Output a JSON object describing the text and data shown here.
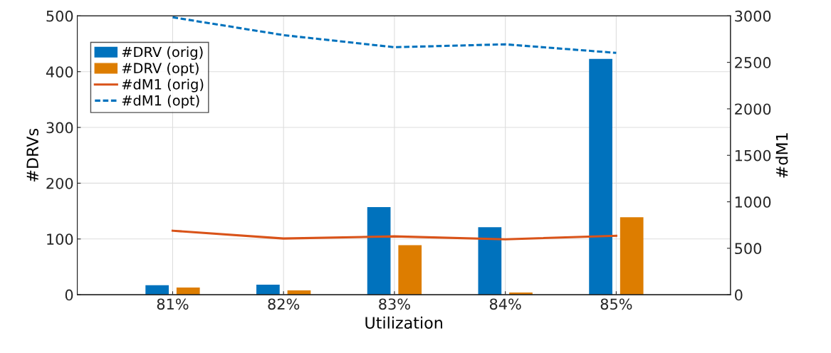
{
  "chart_data": {
    "type": "bar",
    "xlabel": "Utilization",
    "ylabel": "#DRVs",
    "y2label": "#dM1",
    "categories": [
      "81%",
      "82%",
      "83%",
      "84%",
      "85%"
    ],
    "series": [
      {
        "name": "#DRV (orig)",
        "color": "#0072bd",
        "values": [
          17,
          18,
          157,
          121,
          423
        ]
      },
      {
        "name": "#DRV (opt)",
        "color": "#dd7d00",
        "values": [
          13,
          8,
          89,
          4,
          139
        ]
      },
      {
        "name": "#dM1 (orig)",
        "type": "line",
        "axis": "y2",
        "color": "#d95319",
        "line_style": "solid",
        "values": [
          689,
          605,
          628,
          597,
          635
        ]
      },
      {
        "name": "#dM1 (opt)",
        "type": "line",
        "axis": "y2",
        "color": "#0072bd",
        "line_style": "dashed",
        "values": [
          2985,
          2793,
          2663,
          2694,
          2602
        ]
      }
    ],
    "ylim": [
      0,
      500
    ],
    "yticks": [
      0,
      100,
      200,
      300,
      400,
      500
    ],
    "y2lim": [
      0,
      3000
    ],
    "y2ticks": [
      0,
      500,
      1000,
      1500,
      2000,
      2500,
      3000
    ],
    "grid": true,
    "legend": "top left"
  }
}
